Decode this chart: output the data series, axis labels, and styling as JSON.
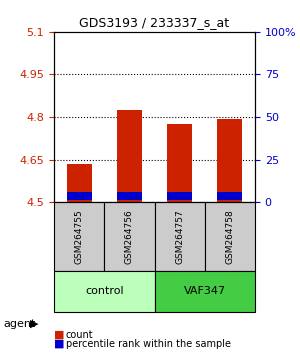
{
  "title": "GDS3193 / 233337_s_at",
  "samples": [
    "GSM264755",
    "GSM264756",
    "GSM264757",
    "GSM264758"
  ],
  "groups": [
    "control",
    "control",
    "VAF347",
    "VAF347"
  ],
  "group_labels": [
    "control",
    "VAF347"
  ],
  "group_colors": [
    "#aaffaa",
    "#55dd55"
  ],
  "sample_bg": "#cccccc",
  "count_values": [
    4.635,
    4.825,
    4.775,
    4.795
  ],
  "percentile_values": [
    3.5,
    3.5,
    3.5,
    3.5
  ],
  "y_min": 4.5,
  "y_max": 5.1,
  "y_ticks": [
    4.5,
    4.65,
    4.8,
    4.95,
    5.1
  ],
  "y_tick_labels": [
    "4.5",
    "4.65",
    "4.8",
    "4.95",
    "5.1"
  ],
  "y2_ticks": [
    0,
    25,
    50,
    75,
    100
  ],
  "y2_tick_labels": [
    "0",
    "25",
    "50",
    "75",
    "100%"
  ],
  "bar_bottom": 4.5,
  "count_color": "#cc2200",
  "percentile_color": "#0000cc",
  "percentile_bar_height": 0.025,
  "left_label_color": "#cc2200",
  "right_label_color": "#0000cc",
  "agent_label": "agent",
  "legend_count": "count",
  "legend_percentile": "percentile rank within the sample"
}
